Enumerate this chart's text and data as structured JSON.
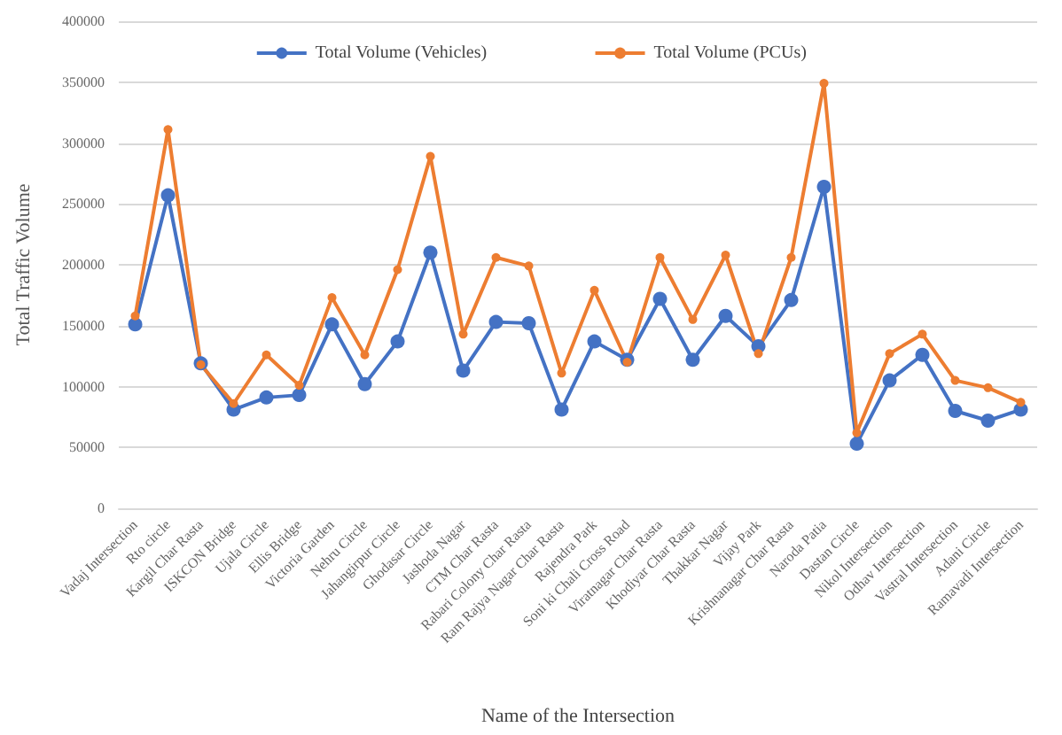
{
  "chart_data": {
    "type": "line",
    "xlabel": "Name of the Intersection",
    "ylabel": "Total Traffic Volume",
    "categories": [
      "Vadaj Intersection",
      "Rto circle",
      "Kargil Char Rasta",
      "ISKCON Bridge",
      "Ujala Circle",
      "Ellis Bridge",
      "Victoria Garden",
      "Nehru Circle",
      "Jahangirpur Circle",
      "Ghodasar Circle",
      "Jashoda Nagar",
      "CTM Char Rasta",
      "Rabari Colony Char Rasta",
      "Ram Rajya Nagar Char Rasta",
      "Rajendra Park",
      "Soni ki Chali Cross Road",
      "Viratnagar Char Rasta",
      "Khodiyar Char Rasta",
      "Thakkar Nagar",
      "Vijay Park",
      "Krishnanagar Char Rasta",
      "Naroda Patia",
      "Dastan Circle",
      "Nikol Intersection",
      "Odhav Intersection",
      "Vastral Intersection",
      "Adani Circle",
      "Ramavadi Intersection"
    ],
    "series": [
      {
        "name": "Total Volume (Vehicles)",
        "color": "#4472c4",
        "values": [
          151000,
          257000,
          119000,
          81000,
          91000,
          93000,
          151000,
          102000,
          137000,
          210000,
          113000,
          153000,
          152000,
          81000,
          137000,
          122000,
          172000,
          122000,
          158000,
          133000,
          171000,
          264000,
          53000,
          105000,
          126000,
          80000,
          72000,
          81000
        ]
      },
      {
        "name": "Total Volume (PCUs)",
        "color": "#ed7d31",
        "values": [
          158000,
          311000,
          118000,
          86000,
          126000,
          101000,
          173000,
          126000,
          196000,
          289000,
          143000,
          206000,
          199000,
          111000,
          179000,
          120000,
          206000,
          155000,
          208000,
          127000,
          206000,
          349000,
          62000,
          127000,
          143000,
          105000,
          99000,
          87000
        ]
      }
    ],
    "ylim": [
      0,
      400000
    ],
    "yticks": [
      0,
      50000,
      100000,
      150000,
      200000,
      250000,
      300000,
      350000,
      400000
    ],
    "grid": "y",
    "legend": "top",
    "marker": "circle",
    "line_style": "solid"
  }
}
